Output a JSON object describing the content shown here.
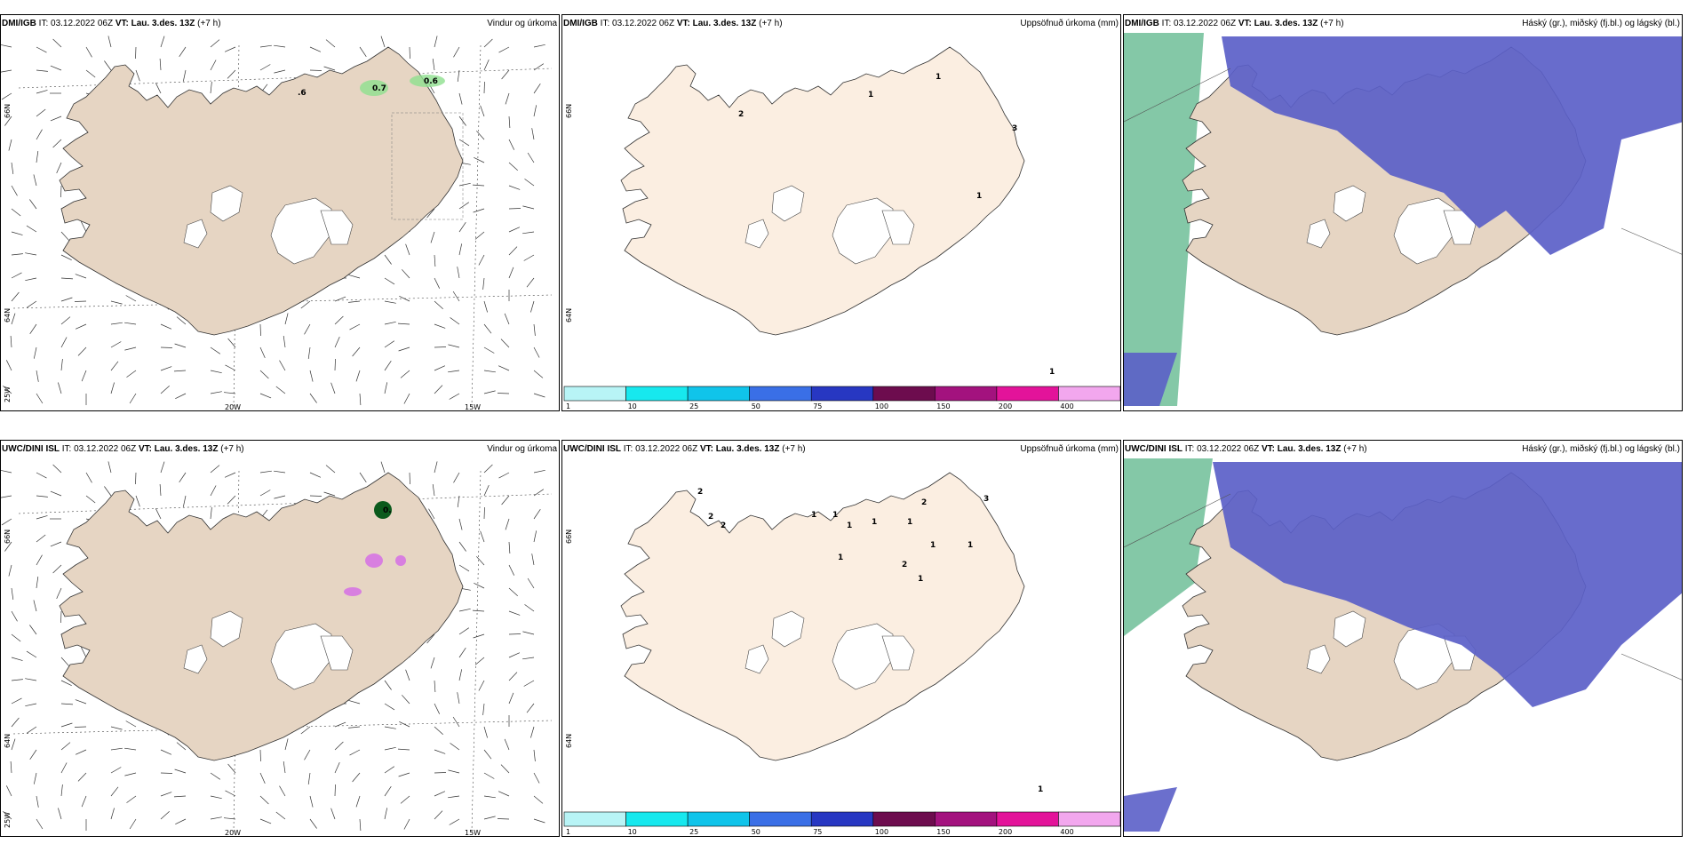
{
  "panels": [
    {
      "id": "p1",
      "model": "DMI/IGB",
      "it": "IT: 03.12.2022 06Z",
      "vt_label": "VT:",
      "vt": "Lau. 3.des. 13Z",
      "lead": "(+7 h)",
      "title_right": "Vindur og úrkoma",
      "lat_labels": [
        "66N",
        "64N",
        "25W"
      ],
      "lon_labels": [
        "20W",
        "15W"
      ],
      "values": [
        "0.7",
        "0.6",
        ".6"
      ]
    },
    {
      "id": "p2",
      "model": "DMI/IGB",
      "it": "IT: 03.12.2022 06Z",
      "vt_label": "VT:",
      "vt": "Lau. 3.des. 13Z",
      "lead": "(+7 h)",
      "title_right": "Uppsöfnuð úrkoma (mm)",
      "lat_labels": [
        "66N",
        "64N"
      ],
      "values": [
        "1",
        "1",
        "2",
        "3",
        "1",
        "1"
      ]
    },
    {
      "id": "p3",
      "model": "DMI/IGB",
      "it": "IT: 03.12.2022 06Z",
      "vt_label": "VT:",
      "vt": "Lau. 3.des. 13Z",
      "lead": "(+7 h)",
      "title_right": "Háský (gr.), miðský (fj.bl.) og lágský (bl.)"
    },
    {
      "id": "p4",
      "model": "UWC/DINI ISL",
      "it": "IT: 03.12.2022 06Z",
      "vt_label": "VT:",
      "vt": "Lau. 3.des. 13Z",
      "lead": "(+7 h)",
      "title_right": "Vindur og úrkoma",
      "lat_labels": [
        "66N",
        "64N",
        "25W"
      ],
      "lon_labels": [
        "20W",
        "15W"
      ],
      "values": [
        "0."
      ]
    },
    {
      "id": "p5",
      "model": "UWC/DINI ISL",
      "it": "IT: 03.12.2022 06Z",
      "vt_label": "VT:",
      "vt": "Lau. 3.des. 13Z",
      "lead": "(+7 h)",
      "title_right": "Uppsöfnuð úrkoma (mm)",
      "lat_labels": [
        "66N",
        "64N"
      ],
      "values": [
        "2",
        "2",
        "2",
        "1",
        "1",
        "1",
        "1",
        "1",
        "2",
        "1",
        "1",
        "3",
        "1",
        "2",
        "1",
        "1"
      ]
    },
    {
      "id": "p6",
      "model": "UWC/DINI ISL",
      "it": "IT: 03.12.2022 06Z",
      "vt_label": "VT:",
      "vt": "Lau. 3.des. 13Z",
      "lead": "(+7 h)",
      "title_right": "Háský (gr.), miðský (fj.bl.) og lágský (bl.)"
    }
  ],
  "colorbar": {
    "ticks": [
      "1",
      "10",
      "25",
      "50",
      "75",
      "100",
      "150",
      "200",
      "400"
    ],
    "colors": [
      "#b8f4f6",
      "#17e8ee",
      "#10c4ea",
      "#3a6fe6",
      "#2737c2",
      "#6d0c4e",
      "#a3127e",
      "#e3139a",
      "#f2a7ee"
    ]
  },
  "colors": {
    "land": "#e6d5c3",
    "land_precip": "#fbeee1",
    "mid_cloud": "#5b5fc8",
    "low_cloud": "#3f8fe0",
    "high_cloud": "#5bb58a",
    "precip_green": "#8fe08f",
    "precip_purple": "#d87fe0"
  }
}
